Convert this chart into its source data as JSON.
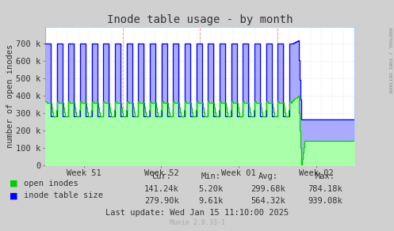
{
  "title": "Inode table usage - by month",
  "ylabel": "number of open inodes",
  "background_color": "#d0d0d0",
  "plot_bg_color": "#ffffff",
  "grid_color_dotted": "#cccccc",
  "grid_color_red": "#ffaaaa",
  "x_tick_labels": [
    "Week 51",
    "Week 52",
    "Week 01",
    "Week 02"
  ],
  "ylim": [
    0,
    800000
  ],
  "yticks": [
    0,
    100000,
    200000,
    300000,
    400000,
    500000,
    600000,
    700000
  ],
  "ytick_labels": [
    "0",
    "100 k",
    "200 k",
    "300 k",
    "400 k",
    "500 k",
    "600 k",
    "700 k"
  ],
  "green_line_color": "#00cc00",
  "green_fill_color": "#aaffaa",
  "blue_line_color": "#0000ff",
  "blue_fill_color": "#aaaaff",
  "legend_labels": [
    "open inodes",
    "inode table size"
  ],
  "footer_text": "Munin 2.0.33-1",
  "stats_cur_green": "141.24k",
  "stats_min_green": "5.20k",
  "stats_avg_green": "299.68k",
  "stats_max_green": "784.18k",
  "stats_cur_blue": "279.90k",
  "stats_min_blue": "9.61k",
  "stats_avg_blue": "564.32k",
  "stats_max_blue": "939.08k",
  "last_update": "Last update: Wed Jan 15 11:10:00 2025",
  "right_label": "RRDTOOL / TOBI OETIKER",
  "title_fontsize": 10,
  "axis_fontsize": 7.5,
  "stats_fontsize": 7.5,
  "footer_fontsize": 6
}
